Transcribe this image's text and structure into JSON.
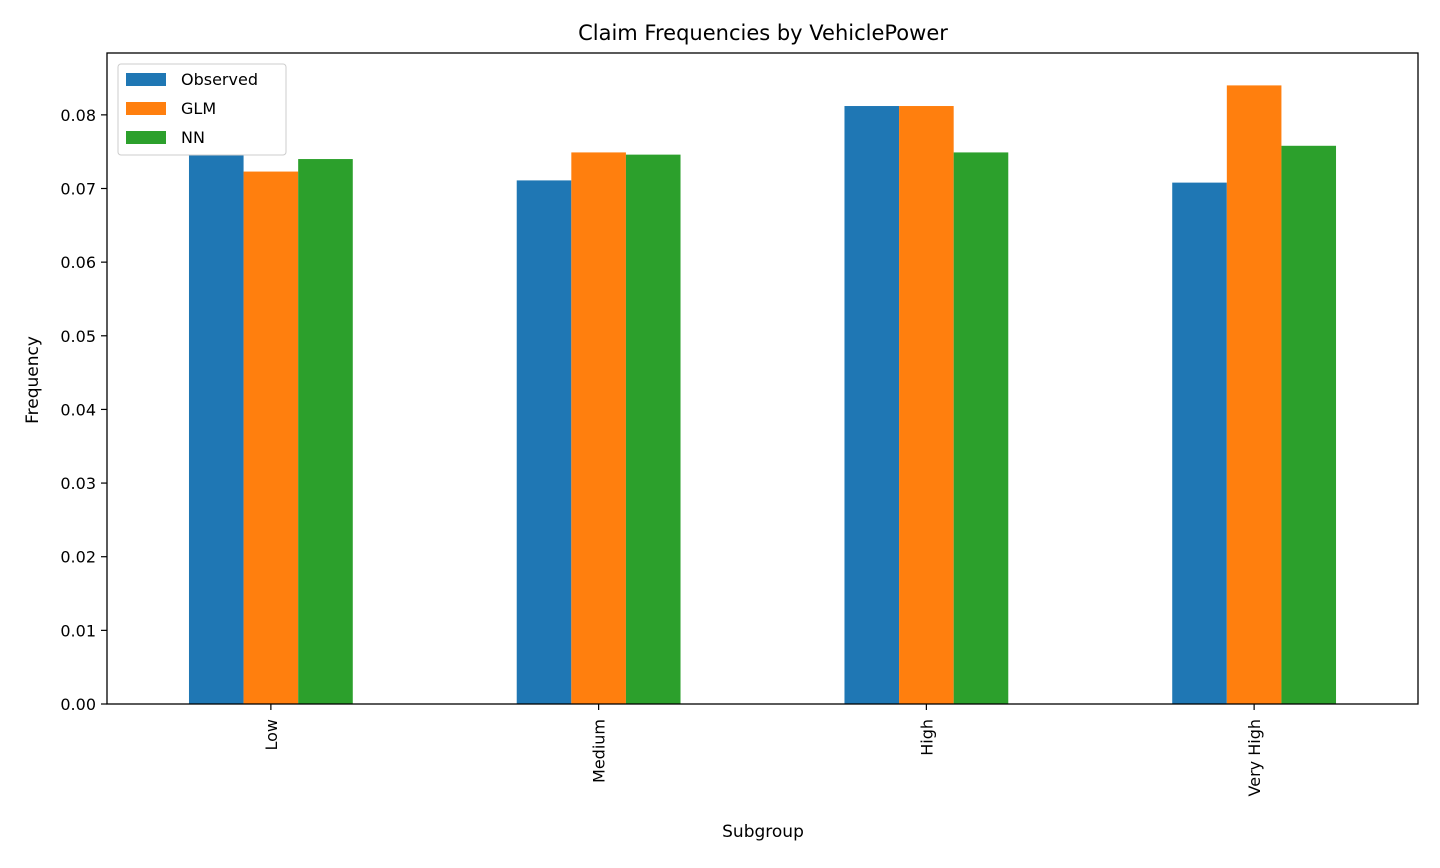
{
  "chart_data": {
    "type": "bar",
    "title": "Claim Frequencies by VehiclePower",
    "xlabel": "Subgroup",
    "ylabel": "Frequency",
    "categories": [
      "Low",
      "Medium",
      "High",
      "Very High"
    ],
    "series": [
      {
        "name": "Observed",
        "color": "#1f77b4",
        "values": [
          0.0745,
          0.0711,
          0.0812,
          0.0708
        ]
      },
      {
        "name": "GLM",
        "color": "#ff7f0e",
        "values": [
          0.0723,
          0.0749,
          0.0812,
          0.084
        ]
      },
      {
        "name": "NN",
        "color": "#2ca02c",
        "values": [
          0.074,
          0.0746,
          0.0749,
          0.0758
        ]
      }
    ],
    "ylim": [
      0,
      0.0884
    ],
    "yticks": [
      "0.00",
      "0.01",
      "0.02",
      "0.03",
      "0.04",
      "0.05",
      "0.06",
      "0.07",
      "0.08"
    ],
    "grid": false,
    "legend_position": "top-left"
  }
}
